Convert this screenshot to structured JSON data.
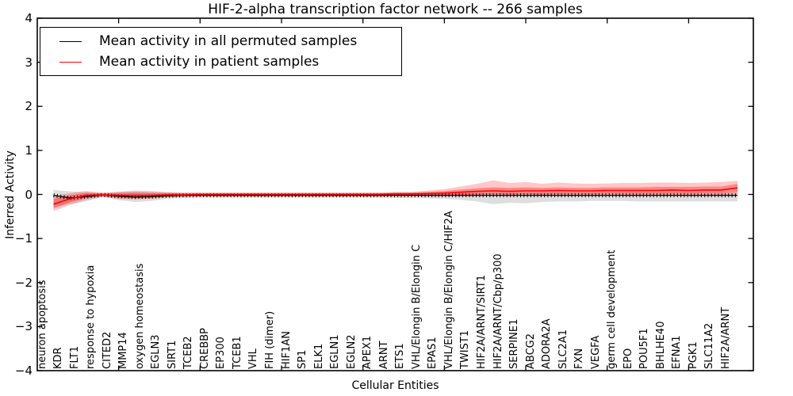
{
  "figure": {
    "title": "HIF-2-alpha transcription factor network -- 266 samples",
    "xlabel": "Cellular Entities",
    "ylabel": "Inferred Activity"
  },
  "legend": {
    "items": [
      {
        "label": "Mean activity in all permuted samples",
        "color": "#000000"
      },
      {
        "label": "Mean activity in patient samples",
        "color": "#ff0000"
      }
    ]
  },
  "axes": {
    "y_tick_labels": [
      "4",
      "3",
      "2",
      "1",
      "0",
      "−1",
      "−2",
      "−3",
      "−4"
    ],
    "y_tick_values": [
      4,
      3,
      2,
      1,
      0,
      -1,
      -2,
      -3,
      -4
    ],
    "x_tick_indices": [
      4,
      9,
      14,
      19,
      24,
      29,
      34,
      39
    ]
  },
  "chart_data": {
    "type": "line",
    "title": "HIF-2-alpha transcription factor network -- 266 samples",
    "xlabel": "Cellular Entities",
    "ylabel": "Inferred Activity",
    "ylim": [
      -4,
      4
    ],
    "grid": false,
    "legend_position": "upper left",
    "categories": [
      "neuron apoptosis",
      "KDR",
      "FLT1",
      "response to hypoxia",
      "CITED2",
      "MMP14",
      "oxygen homeostasis",
      "EGLN3",
      "SIRT1",
      "TCEB2",
      "CREBBP",
      "EP300",
      "TCEB1",
      "VHL",
      "FIH (dimer)",
      "HIF1AN",
      "SP1",
      "ELK1",
      "EGLN1",
      "EGLN2",
      "APEX1",
      "ARNT",
      "ETS1",
      "VHL/Elongin B/Elongin C",
      "EPAS1",
      "VHL/Elongin B/Elongin C/HIF2A",
      "TWIST1",
      "HIF2A/ARNT/SIRT1",
      "HIF2A/ARNT/Cbp/p300",
      "SERPINE1",
      "ABCG2",
      "ADORA2A",
      "SLC2A1",
      "FXN",
      "VEGFA",
      "germ cell development",
      "EPO",
      "POU5F1",
      "BHLHE40",
      "EFNA1",
      "PGK1",
      "SLC11A2",
      "HIF2A/ARNT"
    ],
    "series": [
      {
        "name": "Mean activity in all permuted samples",
        "color": "#000000",
        "marker": "tick",
        "values": [
          -0.02,
          -0.08,
          -0.05,
          -0.01,
          -0.04,
          -0.06,
          -0.05,
          -0.03,
          -0.02,
          -0.02,
          -0.02,
          -0.02,
          -0.02,
          -0.02,
          -0.02,
          -0.02,
          -0.02,
          -0.02,
          -0.02,
          -0.02,
          -0.02,
          -0.02,
          -0.02,
          -0.02,
          -0.02,
          -0.02,
          -0.02,
          -0.02,
          -0.02,
          -0.02,
          -0.02,
          -0.02,
          -0.02,
          -0.02,
          -0.02,
          -0.02,
          -0.02,
          -0.02,
          -0.02,
          -0.02,
          -0.02,
          -0.02,
          -0.02
        ]
      },
      {
        "name": "Mean activity in patient samples",
        "color": "#ff0000",
        "marker": "none",
        "values": [
          -0.22,
          -0.1,
          -0.02,
          -0.01,
          -0.02,
          -0.02,
          -0.02,
          -0.01,
          -0.01,
          0,
          0,
          0,
          0,
          0,
          0,
          0,
          0,
          0,
          0,
          0,
          0,
          0.01,
          0.01,
          0.02,
          0.03,
          0.05,
          0.07,
          0.08,
          0.07,
          0.08,
          0.08,
          0.09,
          0.08,
          0.08,
          0.09,
          0.09,
          0.09,
          0.09,
          0.1,
          0.09,
          0.1,
          0.1,
          0.15
        ]
      }
    ],
    "bands": [
      {
        "name": "permuted-samples-range",
        "color": "#bebebe",
        "opacity": 0.5,
        "high": [
          0.1,
          0.07,
          0.05,
          0.03,
          0.06,
          0.09,
          0.08,
          0.05,
          0.04,
          0.04,
          0.04,
          0.04,
          0.04,
          0.04,
          0.04,
          0.04,
          0.04,
          0.04,
          0.04,
          0.04,
          0.04,
          0.04,
          0.04,
          0.04,
          0.04,
          0.04,
          0.04,
          0.04,
          0.04,
          0.04,
          0.04,
          0.04,
          0.04,
          0.04,
          0.05,
          0.05,
          0.05,
          0.05,
          0.05,
          0.05,
          0.05,
          0.05,
          0.05
        ],
        "low": [
          -0.28,
          -0.22,
          -0.16,
          -0.05,
          -0.13,
          -0.17,
          -0.15,
          -0.1,
          -0.08,
          -0.07,
          -0.07,
          -0.07,
          -0.07,
          -0.07,
          -0.07,
          -0.07,
          -0.07,
          -0.07,
          -0.07,
          -0.07,
          -0.07,
          -0.08,
          -0.08,
          -0.09,
          -0.1,
          -0.12,
          -0.16,
          -0.22,
          -0.19,
          -0.2,
          -0.17,
          -0.16,
          -0.16,
          -0.15,
          -0.15,
          -0.15,
          -0.16,
          -0.16,
          -0.16,
          -0.16,
          -0.16,
          -0.16,
          -0.16
        ]
      },
      {
        "name": "patient-samples-range-outer",
        "color": "#ff0000",
        "opacity": 0.22,
        "high": [
          -0.04,
          0.03,
          0.08,
          0.04,
          0.06,
          0.07,
          0.06,
          0.05,
          0.04,
          0.04,
          0.04,
          0.04,
          0.04,
          0.04,
          0.04,
          0.04,
          0.04,
          0.04,
          0.04,
          0.04,
          0.04,
          0.06,
          0.06,
          0.09,
          0.12,
          0.18,
          0.24,
          0.32,
          0.26,
          0.28,
          0.24,
          0.27,
          0.25,
          0.24,
          0.25,
          0.26,
          0.26,
          0.27,
          0.27,
          0.26,
          0.27,
          0.28,
          0.31
        ],
        "low": [
          -0.38,
          -0.24,
          -0.12,
          -0.06,
          -0.1,
          -0.11,
          -0.1,
          -0.07,
          -0.06,
          -0.05,
          -0.05,
          -0.05,
          -0.05,
          -0.05,
          -0.05,
          -0.05,
          -0.05,
          -0.05,
          -0.05,
          -0.05,
          -0.05,
          -0.04,
          -0.04,
          -0.04,
          -0.04,
          -0.04,
          -0.03,
          -0.02,
          -0.03,
          -0.02,
          -0.03,
          -0.02,
          -0.03,
          -0.03,
          -0.02,
          -0.02,
          -0.02,
          -0.02,
          -0.02,
          -0.02,
          -0.01,
          -0.01,
          0.0
        ]
      },
      {
        "name": "patient-samples-range-inner",
        "color": "#ff0000",
        "opacity": 0.32,
        "high": [
          -0.1,
          -0.02,
          0.04,
          0.02,
          0.03,
          0.04,
          0.03,
          0.03,
          0.02,
          0.02,
          0.02,
          0.02,
          0.02,
          0.02,
          0.02,
          0.02,
          0.02,
          0.02,
          0.02,
          0.02,
          0.02,
          0.04,
          0.04,
          0.06,
          0.08,
          0.11,
          0.14,
          0.16,
          0.15,
          0.16,
          0.15,
          0.16,
          0.15,
          0.15,
          0.16,
          0.16,
          0.16,
          0.17,
          0.17,
          0.17,
          0.18,
          0.18,
          0.24
        ],
        "low": [
          -0.32,
          -0.18,
          -0.08,
          -0.04,
          -0.07,
          -0.08,
          -0.07,
          -0.05,
          -0.04,
          -0.03,
          -0.03,
          -0.03,
          -0.03,
          -0.03,
          -0.03,
          -0.03,
          -0.03,
          -0.03,
          -0.03,
          -0.03,
          -0.03,
          -0.02,
          -0.02,
          -0.02,
          -0.02,
          -0.01,
          0.0,
          0.01,
          0.0,
          0.01,
          0.0,
          0.01,
          0.01,
          0.01,
          0.02,
          0.02,
          0.02,
          0.02,
          0.02,
          0.02,
          0.03,
          0.03,
          0.05
        ]
      }
    ]
  }
}
